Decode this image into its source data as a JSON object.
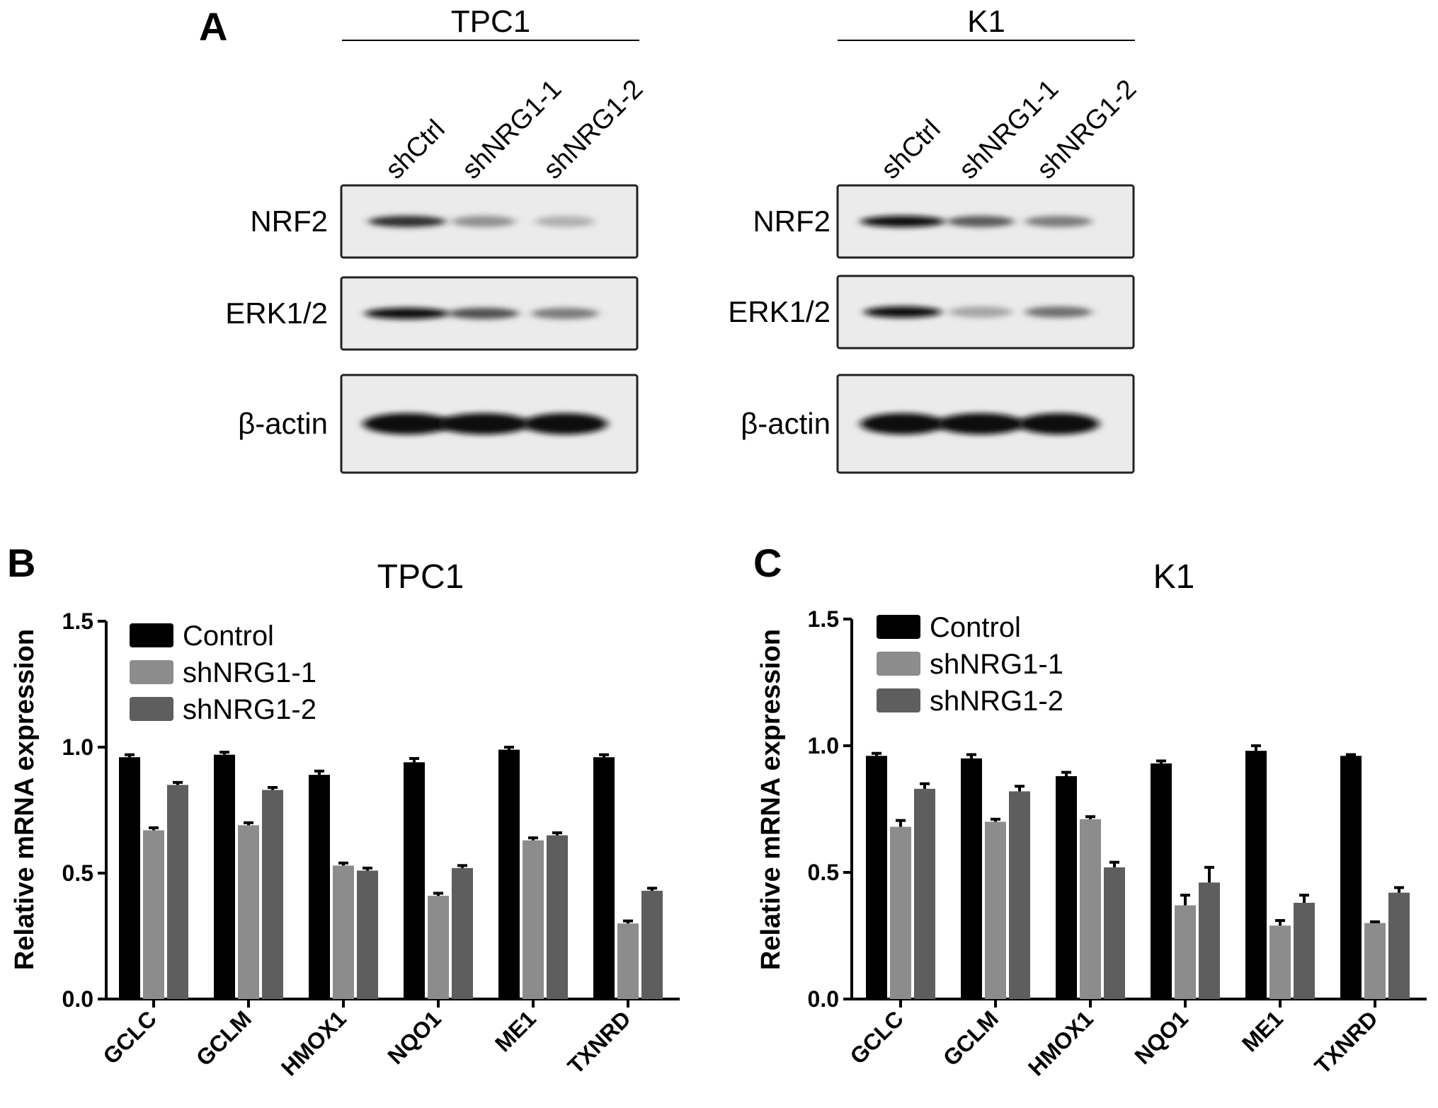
{
  "blot": {
    "panel_label": "A",
    "lanes": [
      "shCtrl",
      "shNRG1-1",
      "shNRG1-2"
    ],
    "proteins": [
      "NRF2",
      "ERK1/2",
      "β-actin"
    ],
    "groups": [
      {
        "cell_line": "TPC1",
        "intensity": [
          [
            0.85,
            0.4,
            0.25
          ],
          [
            1.0,
            0.7,
            0.5
          ],
          [
            1.0,
            1.0,
            1.0
          ]
        ]
      },
      {
        "cell_line": "K1",
        "intensity": [
          [
            1.0,
            0.65,
            0.5
          ],
          [
            1.0,
            0.3,
            0.55
          ],
          [
            1.0,
            1.0,
            1.0
          ]
        ]
      }
    ]
  },
  "chart_data": [
    {
      "type": "bar",
      "panel_label": "B",
      "title": "TPC1",
      "xlabel": "",
      "ylabel": "Relative mRNA expression",
      "ylim": [
        0,
        1.5
      ],
      "yticks": [
        "0.0",
        "0.5",
        "1.0",
        "1.5"
      ],
      "categories": [
        "GCLC",
        "GCLM",
        "HMOX1",
        "NQO1",
        "ME1",
        "TXNRD"
      ],
      "series": [
        {
          "name": "Control",
          "color": "#000000",
          "values": [
            0.96,
            0.97,
            0.89,
            0.94,
            0.99,
            0.96
          ],
          "errors": [
            0.01,
            0.01,
            0.015,
            0.015,
            0.01,
            0.01
          ]
        },
        {
          "name": "shNRG1-1",
          "color": "#8c8c8c",
          "values": [
            0.67,
            0.69,
            0.53,
            0.41,
            0.63,
            0.3
          ],
          "errors": [
            0.01,
            0.01,
            0.01,
            0.01,
            0.01,
            0.01
          ]
        },
        {
          "name": "shNRG1-2",
          "color": "#5e5e5e",
          "values": [
            0.85,
            0.83,
            0.51,
            0.52,
            0.65,
            0.43
          ],
          "errors": [
            0.01,
            0.01,
            0.01,
            0.01,
            0.01,
            0.01
          ]
        }
      ],
      "legend_position": "top-left"
    },
    {
      "type": "bar",
      "panel_label": "C",
      "title": "K1",
      "xlabel": "",
      "ylabel": "Relative mRNA expression",
      "ylim": [
        0,
        1.5
      ],
      "yticks": [
        "0.0",
        "0.5",
        "1.0",
        "1.5"
      ],
      "categories": [
        "GCLC",
        "GCLM",
        "HMOX1",
        "NQO1",
        "ME1",
        "TXNRD"
      ],
      "series": [
        {
          "name": "Control",
          "color": "#000000",
          "values": [
            0.96,
            0.95,
            0.88,
            0.93,
            0.98,
            0.96
          ],
          "errors": [
            0.01,
            0.015,
            0.015,
            0.01,
            0.02,
            0.005
          ]
        },
        {
          "name": "shNRG1-1",
          "color": "#8c8c8c",
          "values": [
            0.68,
            0.7,
            0.71,
            0.37,
            0.29,
            0.3
          ],
          "errors": [
            0.025,
            0.01,
            0.01,
            0.04,
            0.02,
            0.005
          ]
        },
        {
          "name": "shNRG1-2",
          "color": "#5e5e5e",
          "values": [
            0.83,
            0.82,
            0.52,
            0.46,
            0.38,
            0.42
          ],
          "errors": [
            0.02,
            0.02,
            0.02,
            0.06,
            0.03,
            0.02
          ]
        }
      ],
      "legend_position": "top-left"
    }
  ]
}
